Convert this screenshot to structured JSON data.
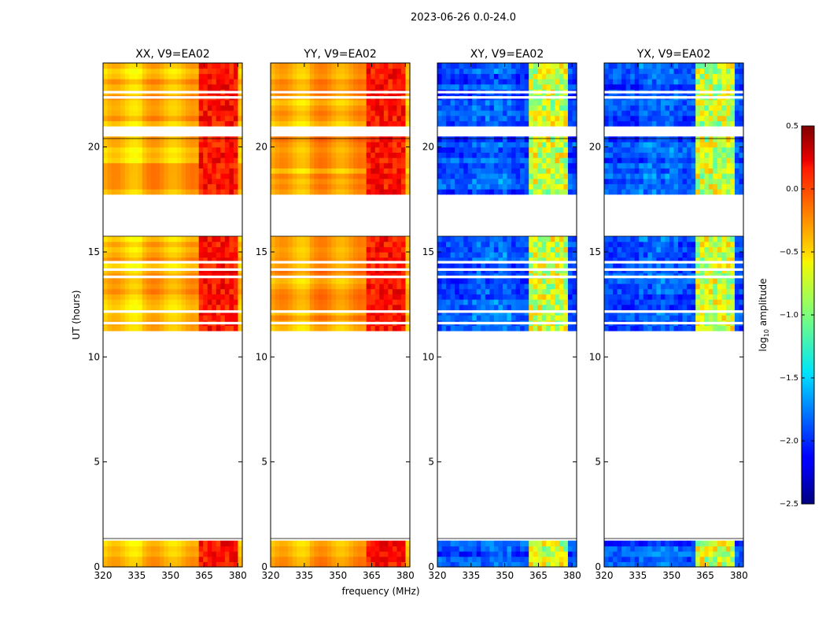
{
  "chart_data": {
    "type": "heatmap",
    "title": "2023-06-26 0.0-24.0",
    "xlabel": "frequency (MHz)",
    "ylabel": "UT (hours)",
    "xlim": [
      320,
      382
    ],
    "ylim": [
      0,
      24
    ],
    "x_ticks": [
      320,
      335,
      350,
      365,
      380
    ],
    "y_ticks": [
      0,
      5,
      10,
      15,
      20
    ],
    "panels": [
      {
        "title": "XX, V9=EA02",
        "pol": "XX",
        "kind": "parallel"
      },
      {
        "title": "YY, V9=EA02",
        "pol": "YY",
        "kind": "parallel"
      },
      {
        "title": "XY, V9=EA02",
        "pol": "XY",
        "kind": "cross"
      },
      {
        "title": "YX, V9=EA02",
        "pol": "YX",
        "kind": "cross"
      }
    ],
    "data_time_ranges_hours": [
      [
        0.0,
        1.35
      ],
      [
        11.15,
        15.75
      ],
      [
        17.7,
        20.4
      ],
      [
        21.0,
        24.0
      ]
    ],
    "gap_rows_hours": [
      11.55,
      12.1,
      13.75,
      14.1,
      14.45,
      16.85,
      20.7,
      22.3,
      22.55
    ],
    "band_features_mhz": {
      "parallel_strong_band": [
        363,
        381
      ],
      "cross_strong_band": [
        360,
        378
      ]
    },
    "colorbar": {
      "label": "log10 amplitude",
      "label_main": "log",
      "label_sub": "10",
      "label_tail": " amplitude",
      "min": -2.5,
      "max": 0.5,
      "ticks": [
        0.5,
        0.0,
        -0.5,
        -1.0,
        -1.5,
        -2.0,
        -2.5
      ],
      "tick_labels": [
        "0.5",
        "0.0",
        "−0.5",
        "−1.0",
        "−1.5",
        "−2.0",
        "−2.5"
      ],
      "colormap": "jet"
    }
  }
}
